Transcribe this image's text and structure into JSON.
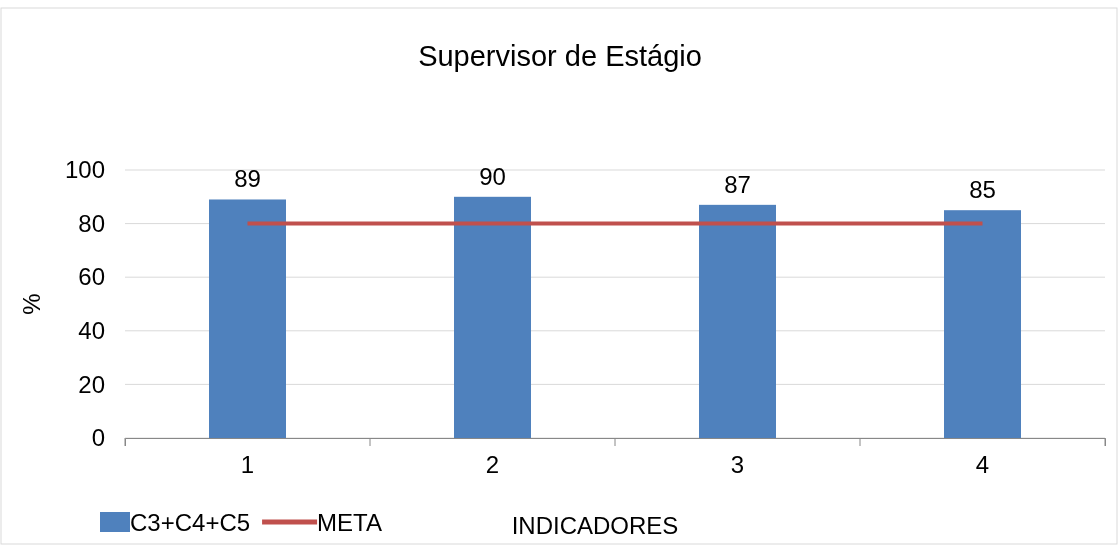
{
  "chart_data": {
    "type": "bar",
    "title": "Supervisor de Estágio",
    "xlabel": "INDICADORES",
    "ylabel": "%",
    "categories": [
      "1",
      "2",
      "3",
      "4"
    ],
    "series": [
      {
        "name": "C3+C4+C5",
        "color": "#4f81bd",
        "values": [
          89,
          90,
          87,
          85
        ],
        "value_labels": [
          "89",
          "90",
          "87",
          "85"
        ]
      },
      {
        "name": "META",
        "type": "line",
        "color": "#c0504d",
        "values": [
          80,
          80,
          80,
          80
        ],
        "marker": "none"
      }
    ],
    "ylim": [
      0,
      100
    ],
    "yticks": [
      0,
      20,
      40,
      60,
      80,
      100
    ],
    "grid": "y",
    "legend": "bottom left"
  }
}
